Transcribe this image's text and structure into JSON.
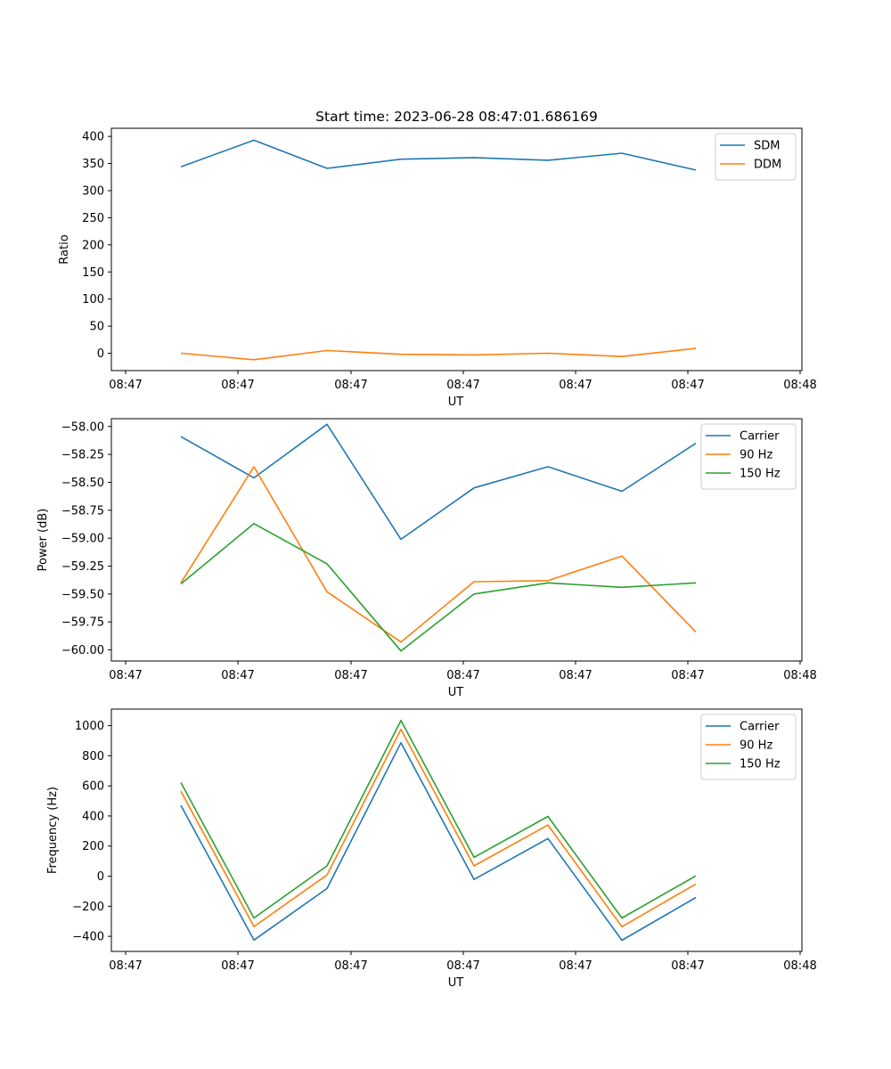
{
  "chart_data": [
    {
      "type": "line",
      "title": "Start time: 2023-06-28 08:47:01.686169",
      "xlabel": "UT",
      "ylabel": "Ratio",
      "x_tick_labels": [
        "08:47",
        "08:47",
        "08:47",
        "08:47",
        "08:47",
        "08:47",
        "08:48"
      ],
      "y_ticks": [
        0,
        50,
        100,
        150,
        200,
        250,
        300,
        350,
        400
      ],
      "y_tick_labels": [
        "0",
        "50",
        "100",
        "150",
        "200",
        "250",
        "300",
        "350",
        "400"
      ],
      "ylim": [
        -32,
        415
      ],
      "legend_position": "upper right",
      "series": [
        {
          "name": "SDM",
          "color": "#1f77b4",
          "values": [
            344,
            393,
            341,
            358,
            361,
            356,
            369,
            338
          ]
        },
        {
          "name": "DDM",
          "color": "#ff7f0e",
          "values": [
            0,
            -12,
            5,
            -2,
            -3,
            0,
            -6,
            9
          ]
        }
      ]
    },
    {
      "type": "line",
      "title": "",
      "xlabel": "UT",
      "ylabel": "Power (dB)",
      "x_tick_labels": [
        "08:47",
        "08:47",
        "08:47",
        "08:47",
        "08:47",
        "08:47",
        "08:48"
      ],
      "y_ticks": [
        -60.0,
        -59.75,
        -59.5,
        -59.25,
        -59.0,
        -58.75,
        -58.5,
        -58.25,
        -58.0
      ],
      "y_tick_labels": [
        "−60.00",
        "−59.75",
        "−59.50",
        "−59.25",
        "−59.00",
        "−58.75",
        "−58.50",
        "−58.25",
        "−58.00"
      ],
      "ylim": [
        -60.1,
        -57.93
      ],
      "legend_position": "upper right",
      "series": [
        {
          "name": "Carrier",
          "color": "#1f77b4",
          "values": [
            -58.09,
            -58.46,
            -57.98,
            -59.01,
            -58.55,
            -58.36,
            -58.58,
            -58.15
          ]
        },
        {
          "name": "90 Hz",
          "color": "#ff7f0e",
          "values": [
            -59.4,
            -58.36,
            -59.48,
            -59.93,
            -59.39,
            -59.38,
            -59.16,
            -59.84
          ]
        },
        {
          "name": "150 Hz",
          "color": "#2ca02c",
          "values": [
            -59.41,
            -58.87,
            -59.23,
            -60.01,
            -59.5,
            -59.4,
            -59.44,
            -59.4
          ]
        }
      ]
    },
    {
      "type": "line",
      "title": "",
      "xlabel": "UT",
      "ylabel": "Frequency (Hz)",
      "x_tick_labels": [
        "08:47",
        "08:47",
        "08:47",
        "08:47",
        "08:47",
        "08:47",
        "08:48"
      ],
      "y_ticks": [
        -400,
        -200,
        0,
        200,
        400,
        600,
        800,
        1000
      ],
      "y_tick_labels": [
        "−400",
        "−200",
        "0",
        "200",
        "400",
        "600",
        "800",
        "1000"
      ],
      "ylim": [
        -500,
        1110
      ],
      "legend_position": "upper right",
      "series": [
        {
          "name": "Carrier",
          "color": "#1f77b4",
          "values": [
            470,
            -425,
            -82,
            887,
            -22,
            250,
            -426,
            -142
          ]
        },
        {
          "name": "90 Hz",
          "color": "#ff7f0e",
          "values": [
            565,
            -335,
            8,
            975,
            68,
            340,
            -336,
            -52
          ]
        },
        {
          "name": "150 Hz",
          "color": "#2ca02c",
          "values": [
            622,
            -278,
            68,
            1035,
            125,
            397,
            -278,
            2
          ]
        }
      ]
    }
  ]
}
